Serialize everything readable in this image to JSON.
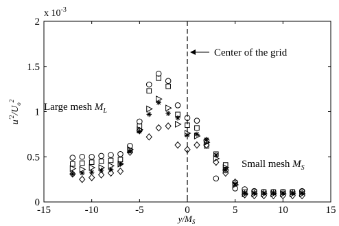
{
  "chart_data": {
    "type": "scatter",
    "title": "",
    "xlabel": "y/M_S",
    "ylabel": "u'^2/U_o^2",
    "scale_multiplier_label": "x 10",
    "scale_multiplier_exponent": "-3",
    "xlim": [
      -15,
      15
    ],
    "ylim": [
      0,
      2
    ],
    "x_ticks": [
      -15,
      -10,
      -5,
      0,
      5,
      10,
      15
    ],
    "y_ticks": [
      0,
      0.5,
      1,
      1.5,
      2
    ],
    "grid": false,
    "legend": null,
    "series": [
      {
        "marker": "circle",
        "points": [
          [
            -12,
            0.49
          ],
          [
            -11,
            0.5
          ],
          [
            -10,
            0.5
          ],
          [
            -9,
            0.51
          ],
          [
            -8,
            0.52
          ],
          [
            -7,
            0.53
          ],
          [
            -6,
            0.62
          ],
          [
            -5,
            0.89
          ],
          [
            -4,
            1.3
          ],
          [
            -3,
            1.42
          ],
          [
            -2,
            1.34
          ],
          [
            -1,
            1.07
          ],
          [
            0,
            0.93
          ],
          [
            1,
            0.9
          ],
          [
            2,
            0.68
          ],
          [
            3,
            0.26
          ],
          [
            4,
            0.35
          ],
          [
            5,
            0.15
          ],
          [
            6,
            0.14
          ],
          [
            7,
            0.12
          ],
          [
            8,
            0.11
          ],
          [
            9,
            0.11
          ],
          [
            10,
            0.11
          ],
          [
            11,
            0.11
          ],
          [
            12,
            0.12
          ]
        ]
      },
      {
        "marker": "square",
        "points": [
          [
            -12,
            0.42
          ],
          [
            -11,
            0.43
          ],
          [
            -10,
            0.44
          ],
          [
            -9,
            0.45
          ],
          [
            -8,
            0.46
          ],
          [
            -7,
            0.47
          ],
          [
            -6,
            0.57
          ],
          [
            -5,
            0.84
          ],
          [
            -4,
            1.23
          ],
          [
            -3,
            1.37
          ],
          [
            -2,
            1.28
          ],
          [
            -1,
            0.97
          ],
          [
            0,
            0.85
          ],
          [
            1,
            0.82
          ],
          [
            2,
            0.62
          ],
          [
            3,
            0.53
          ],
          [
            4,
            0.41
          ],
          [
            5,
            0.21
          ],
          [
            6,
            0.11
          ],
          [
            7,
            0.11
          ],
          [
            8,
            0.11
          ],
          [
            9,
            0.11
          ],
          [
            10,
            0.11
          ],
          [
            11,
            0.11
          ],
          [
            12,
            0.11
          ]
        ]
      },
      {
        "marker": "triangle-right",
        "points": [
          [
            -12,
            0.37
          ],
          [
            -11,
            0.36
          ],
          [
            -10,
            0.38
          ],
          [
            -9,
            0.38
          ],
          [
            -8,
            0.4
          ],
          [
            -7,
            0.42
          ],
          [
            -6,
            0.58
          ],
          [
            -5,
            0.8
          ],
          [
            -4,
            1.03
          ],
          [
            -3,
            1.14
          ],
          [
            -2,
            1.04
          ],
          [
            -1,
            0.86
          ],
          [
            0,
            0.76
          ],
          [
            1,
            0.73
          ],
          [
            2,
            0.66
          ],
          [
            3,
            0.48
          ],
          [
            4,
            0.38
          ],
          [
            5,
            0.19
          ],
          [
            6,
            0.09
          ],
          [
            7,
            0.09
          ],
          [
            8,
            0.09
          ],
          [
            9,
            0.09
          ],
          [
            10,
            0.09
          ],
          [
            11,
            0.09
          ],
          [
            12,
            0.09
          ]
        ]
      },
      {
        "marker": "star",
        "points": [
          [
            -12,
            0.31
          ],
          [
            -11,
            0.32
          ],
          [
            -10,
            0.33
          ],
          [
            -9,
            0.35
          ],
          [
            -8,
            0.36
          ],
          [
            -7,
            0.42
          ],
          [
            -6,
            0.56
          ],
          [
            -5,
            0.78
          ],
          [
            -4,
            0.97
          ],
          [
            -3,
            1.1
          ],
          [
            -2,
            0.98
          ],
          [
            -1,
            0.93
          ],
          [
            0,
            0.74
          ],
          [
            1,
            0.75
          ],
          [
            2,
            0.69
          ],
          [
            3,
            0.52
          ],
          [
            4,
            0.36
          ],
          [
            5,
            0.2
          ],
          [
            6,
            0.1
          ],
          [
            7,
            0.1
          ],
          [
            8,
            0.1
          ],
          [
            9,
            0.1
          ],
          [
            10,
            0.1
          ],
          [
            11,
            0.1
          ],
          [
            12,
            0.1
          ]
        ]
      },
      {
        "marker": "diamond",
        "points": [
          [
            -12,
            0.31
          ],
          [
            -11,
            0.25
          ],
          [
            -10,
            0.27
          ],
          [
            -9,
            0.3
          ],
          [
            -8,
            0.32
          ],
          [
            -7,
            0.34
          ],
          [
            -6,
            0.55
          ],
          [
            -5,
            0.79
          ],
          [
            -4,
            0.72
          ],
          [
            -3,
            0.82
          ],
          [
            -2,
            0.84
          ],
          [
            -1,
            0.63
          ],
          [
            0,
            0.58
          ],
          [
            1,
            0.63
          ],
          [
            2,
            0.63
          ],
          [
            3,
            0.44
          ],
          [
            4,
            0.32
          ],
          [
            5,
            0.22
          ],
          [
            6,
            0.08
          ],
          [
            7,
            0.07
          ],
          [
            8,
            0.07
          ],
          [
            9,
            0.07
          ],
          [
            10,
            0.07
          ],
          [
            11,
            0.07
          ],
          [
            12,
            0.07
          ]
        ]
      }
    ],
    "annotations": {
      "center_line_x": 0,
      "center_label": "Center of the grid",
      "large_mesh_label": "Large mesh ",
      "large_mesh_symbol": "M",
      "large_mesh_subscript": "L",
      "small_mesh_label": "Small mesh ",
      "small_mesh_symbol": "M",
      "small_mesh_subscript": "S"
    }
  }
}
